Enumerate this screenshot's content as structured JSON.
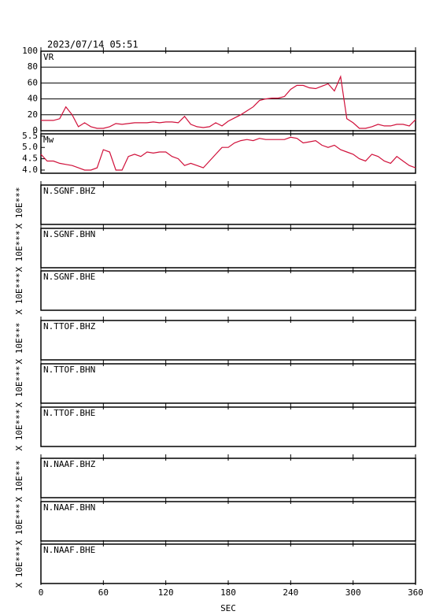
{
  "chart_data": [
    {
      "type": "line",
      "title": "2023/07/14 05:51",
      "label": "VR",
      "color": "#d0103a",
      "x": [
        0,
        6,
        12,
        18,
        24,
        30,
        36,
        42,
        48,
        54,
        60,
        66,
        72,
        78,
        84,
        90,
        96,
        102,
        108,
        114,
        120,
        126,
        132,
        138,
        144,
        150,
        156,
        162,
        168,
        174,
        180,
        186,
        192,
        198,
        204,
        210,
        216,
        222,
        228,
        234,
        240,
        246,
        252,
        258,
        264,
        270,
        276,
        282,
        288,
        294,
        300,
        306,
        312,
        318,
        324,
        330,
        336,
        342,
        348,
        354,
        360
      ],
      "values": [
        13,
        13,
        13,
        15,
        30,
        20,
        5,
        10,
        5,
        3,
        3,
        5,
        9,
        8,
        9,
        10,
        10,
        10,
        11,
        10,
        11,
        11,
        10,
        18,
        8,
        5,
        4,
        5,
        10,
        6,
        12,
        16,
        20,
        25,
        30,
        38,
        40,
        41,
        41,
        43,
        52,
        57,
        57,
        54,
        53,
        56,
        59,
        50,
        68,
        15,
        10,
        3,
        3,
        5,
        8,
        6,
        6,
        8,
        8,
        6,
        14
      ],
      "xlim": [
        0,
        360
      ],
      "ylim": [
        0,
        100
      ],
      "yticks": [
        0,
        20,
        40,
        60,
        80,
        100
      ],
      "grid": true
    },
    {
      "type": "line",
      "label": "Mw",
      "color": "#d0103a",
      "x": [
        0,
        6,
        12,
        18,
        24,
        30,
        36,
        42,
        48,
        54,
        60,
        66,
        72,
        78,
        84,
        90,
        96,
        102,
        108,
        114,
        120,
        126,
        132,
        138,
        144,
        150,
        156,
        162,
        168,
        174,
        180,
        186,
        192,
        198,
        204,
        210,
        216,
        222,
        228,
        234,
        240,
        246,
        252,
        258,
        264,
        270,
        276,
        282,
        288,
        294,
        300,
        306,
        312,
        318,
        324,
        330,
        336,
        342,
        348,
        354,
        360
      ],
      "values": [
        4.7,
        4.4,
        4.4,
        4.3,
        4.25,
        4.2,
        4.1,
        4.0,
        4.0,
        4.1,
        4.9,
        4.8,
        4.0,
        4.0,
        4.6,
        4.7,
        4.6,
        4.8,
        4.75,
        4.8,
        4.8,
        4.6,
        4.5,
        4.2,
        4.3,
        4.2,
        4.1,
        4.4,
        4.7,
        5.0,
        5.0,
        5.2,
        5.3,
        5.35,
        5.3,
        5.4,
        5.35,
        5.35,
        5.35,
        5.35,
        5.45,
        5.4,
        5.2,
        5.25,
        5.3,
        5.1,
        5.0,
        5.1,
        4.9,
        4.8,
        4.7,
        4.5,
        4.4,
        4.7,
        4.6,
        4.4,
        4.3,
        4.6,
        4.4,
        4.2,
        4.1
      ],
      "xlim": [
        0,
        360
      ],
      "ylim": [
        3.86,
        5.6
      ],
      "yticks": [
        {
          "value": 4,
          "label": "4.0"
        },
        4.5,
        {
          "value": 5,
          "label": "5.0"
        },
        5.5
      ],
      "grid": false
    },
    {
      "type": "waveform",
      "label": "N.SGNF.BHZ",
      "ylabel": "X 10E***"
    },
    {
      "type": "waveform",
      "label": "N.SGNF.BHN",
      "ylabel": "X 10E***"
    },
    {
      "type": "waveform",
      "label": "N.SGNF.BHE",
      "ylabel": "X 10E***"
    },
    {
      "type": "waveform",
      "label": "N.TTOF.BHZ",
      "ylabel": "X 10E***"
    },
    {
      "type": "waveform",
      "label": "N.TTOF.BHN",
      "ylabel": "X 10E***"
    },
    {
      "type": "waveform",
      "label": "N.TTOF.BHE",
      "ylabel": "X 10E***"
    },
    {
      "type": "waveform",
      "label": "N.NAAF.BHZ",
      "ylabel": "X 10E***"
    },
    {
      "type": "waveform",
      "label": "N.NAAF.BHN",
      "ylabel": "X 10E***"
    },
    {
      "type": "waveform",
      "label": "N.NAAF.BHE",
      "ylabel": "X 10E***",
      "xlim": [
        0,
        360
      ],
      "xticks": [
        0,
        60,
        120,
        180,
        240,
        300,
        360
      ],
      "xlabel": "SEC"
    }
  ]
}
